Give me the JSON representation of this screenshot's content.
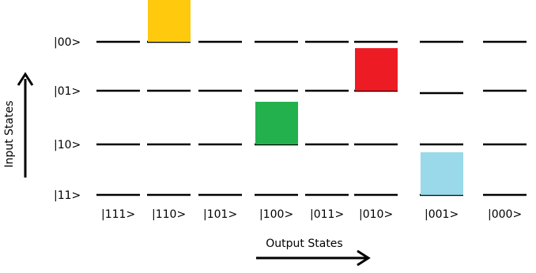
{
  "diagram": {
    "input_states": [
      "|00>",
      "|01>",
      "|10>",
      "|11>"
    ],
    "output_states": [
      "|111>",
      "|110>",
      "|101>",
      "|100>",
      "|011>",
      "|010>",
      "|001>",
      "|000>"
    ],
    "y_axis_title": "Input States",
    "x_axis_title": "Output States",
    "blocks": [
      {
        "input": "|00>",
        "output": "|110>",
        "color": "#FFC90E"
      },
      {
        "input": "|01>",
        "output": "|010>",
        "color": "#ED1C24"
      },
      {
        "input": "|10>",
        "output": "|100>",
        "color": "#22B14C"
      },
      {
        "input": "|11>",
        "output": "|001>",
        "color": "#99D9EA"
      }
    ]
  }
}
